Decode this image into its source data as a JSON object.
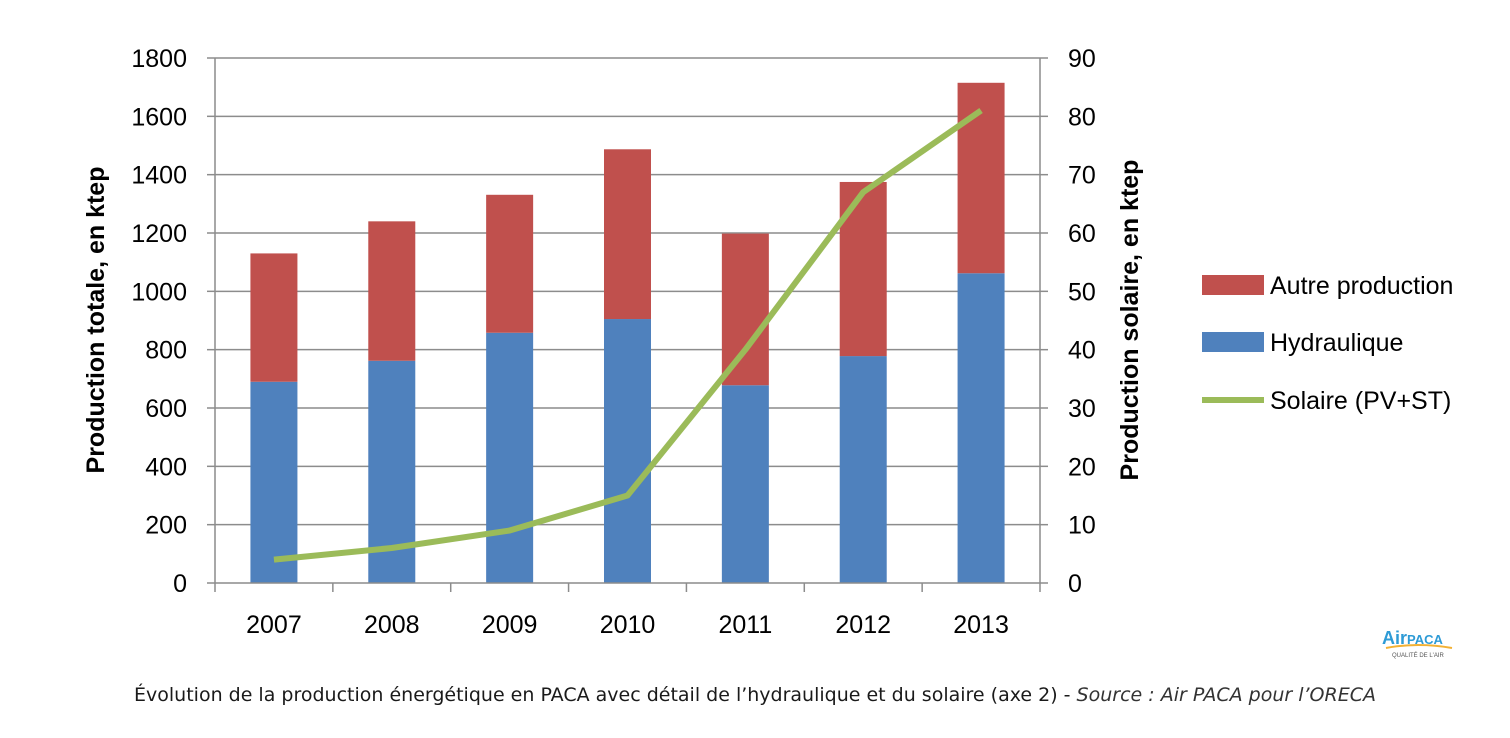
{
  "chart_data": {
    "type": "bar",
    "stacked": true,
    "categories": [
      "2007",
      "2008",
      "2009",
      "2010",
      "2011",
      "2012",
      "2013"
    ],
    "series": [
      {
        "name": "Hydraulique",
        "axis": "left",
        "color": "#4f81bd",
        "values": [
          690,
          762,
          858,
          905,
          678,
          778,
          1062
        ]
      },
      {
        "name": "Autre production",
        "axis": "left",
        "color": "#c0504d",
        "values": [
          440,
          478,
          473,
          582,
          520,
          597,
          653
        ]
      },
      {
        "name": "Solaire (PV+ST)",
        "axis": "right",
        "type": "line",
        "color": "#9bbb59",
        "values": [
          4,
          6,
          9,
          15,
          40,
          67,
          81
        ]
      }
    ],
    "ylabel": "Production totale, en ktep",
    "y2label": "Production solaire, en ktep",
    "ylim": [
      0,
      1800
    ],
    "y2lim": [
      0,
      90
    ],
    "yticks": [
      "0",
      "200",
      "400",
      "600",
      "800",
      "1000",
      "1200",
      "1400",
      "1600",
      "1800"
    ],
    "y2ticks": [
      "0",
      "10",
      "20",
      "30",
      "40",
      "50",
      "60",
      "70",
      "80",
      "90"
    ],
    "grid": true,
    "legend_position": "right",
    "legend": [
      "Autre production",
      "Hydraulique",
      "Solaire (PV+ST)"
    ]
  },
  "caption": {
    "text": "Évolution de la production énergétique en PACA avec détail de l’hydraulique et du solaire (axe 2) - ",
    "source": "Source : Air PACA pour l’ORECA"
  },
  "logo": {
    "text_air": "Air",
    "text_paca": "PACA",
    "tagline": "QUALITÉ DE L'AIR"
  }
}
